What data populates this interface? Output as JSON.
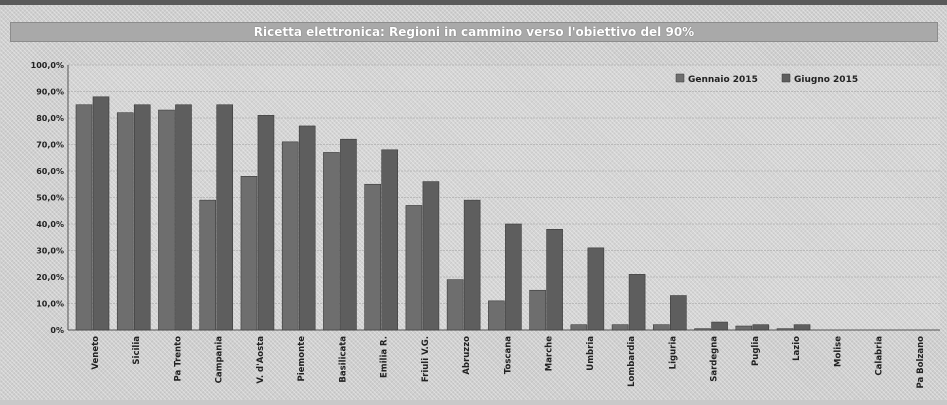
{
  "chart_data": {
    "type": "bar",
    "title": "Ricetta elettronica: Regioni in cammino verso l'obiettivo del 90%",
    "categories": [
      "Veneto",
      "Sicilia",
      "Pa Trento",
      "Campania",
      "V. d'Aosta",
      "Piemonte",
      "Basilicata",
      "Emilia R.",
      "Friuli V.G.",
      "Abruzzo",
      "Toscana",
      "Marche",
      "Umbria",
      "Lombardia",
      "Liguria",
      "Sardegna",
      "Puglia",
      "Lazio",
      "Molise",
      "Calabria",
      "Pa Bolzano"
    ],
    "series": [
      {
        "name": "Gennaio 2015",
        "values": [
          85,
          82,
          83,
          49,
          58,
          71,
          67,
          55,
          47,
          19,
          11,
          15,
          2,
          2,
          2,
          0.5,
          1.5,
          0.5,
          0,
          0,
          0
        ]
      },
      {
        "name": "Giugno 2015",
        "values": [
          88,
          85,
          85,
          85,
          81,
          77,
          72,
          68,
          56,
          49,
          40,
          38,
          31,
          21,
          13,
          3,
          2,
          2,
          0,
          0,
          0
        ]
      }
    ],
    "ylim": [
      0,
      100
    ],
    "yticks": [
      "0%",
      "10,0%",
      "20,0%",
      "30,0%",
      "40,0%",
      "50,0%",
      "60,0%",
      "70,0%",
      "80,0%",
      "90,0%",
      "100,0%"
    ],
    "grid": true,
    "legend_position": "top-right",
    "colors": {
      "gennaio": "#6e6e6e",
      "giugno": "#5e5e5e",
      "bar_stroke": "#3a3a3a",
      "grid": "#b0b0b0"
    }
  }
}
